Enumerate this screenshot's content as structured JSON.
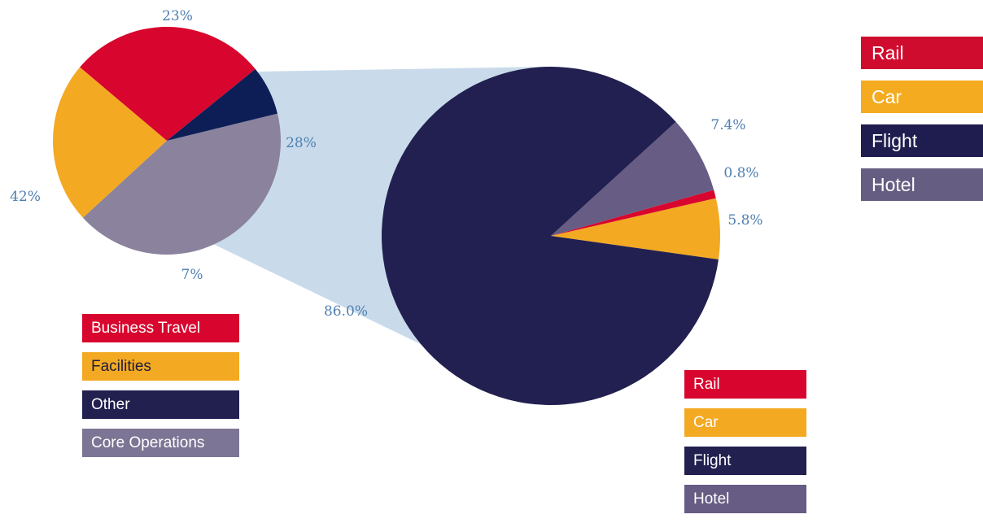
{
  "chart_data": [
    {
      "type": "pie",
      "categories": [
        "Business Travel",
        "Facilities",
        "Core Operations",
        "Other"
      ],
      "values": [
        28,
        23,
        42,
        7
      ],
      "labels": [
        "28%",
        "23%",
        "42%",
        "7%"
      ],
      "colors": [
        "#d8062e",
        "#f3a922",
        "#8b829d",
        "#0d1e57"
      ],
      "legend": [
        "Business Travel",
        "Facilities",
        "Other",
        "Core Operations"
      ],
      "legend_colors": [
        "#d8062e",
        "#f3a922",
        "#22204f",
        "#7d7595"
      ],
      "legend_placement": "below"
    },
    {
      "type": "pie",
      "categories": [
        "Car",
        "Rail",
        "Hotel",
        "Flight"
      ],
      "values": [
        5.8,
        0.8,
        7.4,
        86.0
      ],
      "labels": [
        "5.8%",
        "0.8%",
        "7.4%",
        "86.0%"
      ],
      "colors": [
        "#f3a922",
        "#d8062e",
        "#675c83",
        "#222050"
      ],
      "legend": [
        "Rail",
        "Car",
        "Flight",
        "Hotel"
      ],
      "legend_colors": [
        "#d8062e",
        "#f3a922",
        "#22204f",
        "#675c83"
      ],
      "legend_placement": "bottom-right"
    }
  ],
  "right_legend": {
    "items": [
      "Rail",
      "Car",
      "Flight",
      "Hotel"
    ],
    "colors": [
      "#d00c2e",
      "#f4ab1f",
      "#1f1d4f",
      "#665e82"
    ]
  },
  "connector_color": "#c9dbeb"
}
